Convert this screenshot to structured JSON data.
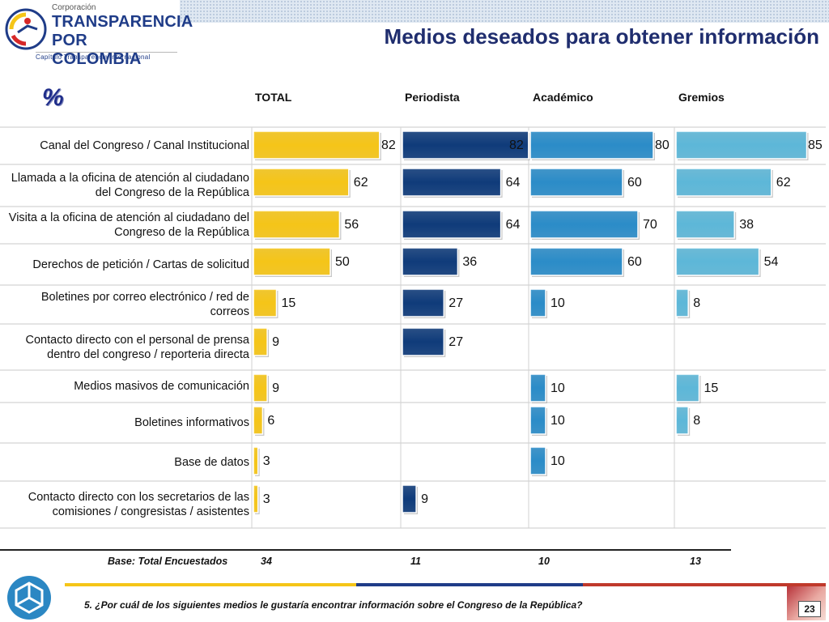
{
  "header": {
    "org_line1": "Corporación",
    "org_line2": "TRANSPARENCIA",
    "org_line3": "POR COLOMBIA",
    "org_line4": "Capítulo Transparencia Internacional",
    "title": "Medios deseados para obtener información"
  },
  "percent_symbol": "%",
  "columns": [
    "TOTAL",
    "Periodista",
    "Académico",
    "Gremios"
  ],
  "colors": {
    "total": "#f5c518",
    "periodista": "#0f3b7a",
    "academico": "#2b8cc8",
    "gremios": "#5db7d8",
    "title": "#1f2d6e"
  },
  "chart_data": {
    "type": "bar",
    "orientation": "horizontal",
    "title": "Medios deseados para obtener información",
    "unit": "%",
    "categories": [
      "Canal del Congreso / Canal Institucional",
      "Llamada a la oficina de atención al ciudadano del Congreso de la República",
      "Visita a la oficina de atención al ciudadano del Congreso de la República",
      "Derechos de petición / Cartas de solicitud",
      "Boletines por correo electrónico / red de correos",
      "Contacto directo con el personal de prensa dentro del congreso / reporteria directa",
      "Medios masivos de comunicación",
      "Boletines informativos",
      "Base de datos",
      "Contacto directo con los secretarios de las comisiones / congresistas / asistentes"
    ],
    "series": [
      {
        "name": "TOTAL",
        "values": [
          82,
          62,
          56,
          50,
          15,
          9,
          9,
          6,
          3,
          3
        ]
      },
      {
        "name": "Periodista",
        "values": [
          82,
          64,
          64,
          36,
          27,
          27,
          null,
          null,
          null,
          9
        ]
      },
      {
        "name": "Académico",
        "values": [
          80,
          60,
          70,
          60,
          10,
          null,
          10,
          10,
          10,
          null
        ]
      },
      {
        "name": "Gremios",
        "values": [
          85,
          62,
          38,
          54,
          8,
          null,
          15,
          8,
          null,
          null
        ]
      }
    ],
    "xlim": [
      0,
      100
    ]
  },
  "base": {
    "label": "Base: Total Encuestados",
    "values": [
      "34",
      "11",
      "10",
      "13"
    ]
  },
  "footer": {
    "question": "5. ¿Por cuál de los siguientes medios le gustaría encontrar información sobre el Congreso de la República?",
    "page_number": "23"
  }
}
